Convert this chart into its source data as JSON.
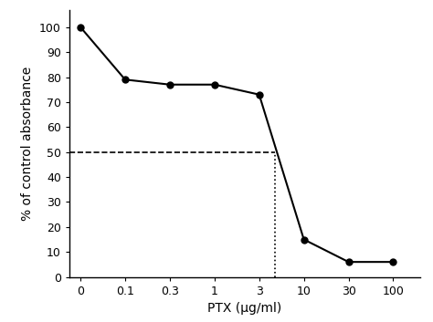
{
  "x_values": [
    0,
    0.1,
    0.3,
    1,
    3,
    10,
    30,
    100
  ],
  "y_values": [
    100,
    79,
    77,
    77,
    73,
    15,
    6,
    6
  ],
  "x_tick_labels": [
    "0",
    "0.1",
    "0.3",
    "1",
    "3",
    "10",
    "30",
    "100"
  ],
  "x_tick_positions": [
    0,
    1,
    2,
    3,
    4,
    5,
    6,
    7
  ],
  "xlabel": "PTX (μg/ml)",
  "ylabel": "% of control absorbance",
  "ylim": [
    0,
    107
  ],
  "yticks": [
    0,
    10,
    20,
    30,
    40,
    50,
    60,
    70,
    80,
    90,
    100
  ],
  "ec50_y": 50,
  "ec50_x": 4.35,
  "dashed_line_color": "#000000",
  "line_color": "#000000",
  "marker_color": "#000000",
  "background_color": "#ffffff",
  "title": "",
  "xlim_left": -0.25,
  "xlim_right": 7.6
}
